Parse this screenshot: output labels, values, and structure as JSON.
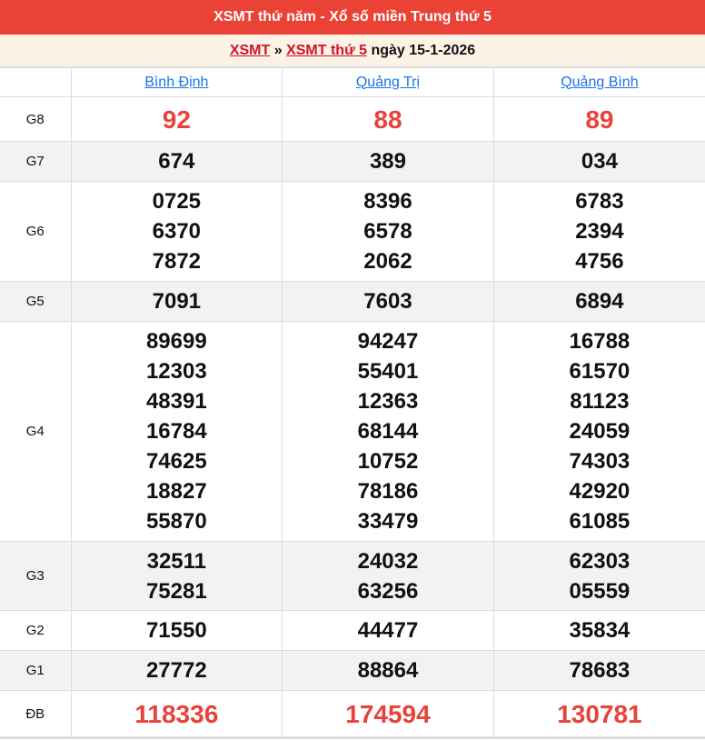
{
  "title": "XSMT thứ năm - Xổ số miền Trung thứ 5",
  "breadcrumb": {
    "link1": "XSMT",
    "sep": "»",
    "link2": "XSMT thứ 5",
    "date": "ngày 15-1-2026"
  },
  "provinces": [
    "Bình Định",
    "Quảng Trị",
    "Quảng Bình"
  ],
  "colors": {
    "header": "#ea4336",
    "special": "#e8423a",
    "link": "#1a73e8"
  },
  "prizes": [
    {
      "label": "G8",
      "values": [
        [
          "92"
        ],
        [
          "88"
        ],
        [
          "89"
        ]
      ]
    },
    {
      "label": "G7",
      "values": [
        [
          "674"
        ],
        [
          "389"
        ],
        [
          "034"
        ]
      ]
    },
    {
      "label": "G6",
      "values": [
        [
          "0725",
          "6370",
          "7872"
        ],
        [
          "8396",
          "6578",
          "2062"
        ],
        [
          "6783",
          "2394",
          "4756"
        ]
      ]
    },
    {
      "label": "G5",
      "values": [
        [
          "7091"
        ],
        [
          "7603"
        ],
        [
          "6894"
        ]
      ]
    },
    {
      "label": "G4",
      "values": [
        [
          "89699",
          "12303",
          "48391",
          "16784",
          "74625",
          "18827",
          "55870"
        ],
        [
          "94247",
          "55401",
          "12363",
          "68144",
          "10752",
          "78186",
          "33479"
        ],
        [
          "16788",
          "61570",
          "81123",
          "24059",
          "74303",
          "42920",
          "61085"
        ]
      ]
    },
    {
      "label": "G3",
      "values": [
        [
          "32511",
          "75281"
        ],
        [
          "24032",
          "63256"
        ],
        [
          "62303",
          "05559"
        ]
      ]
    },
    {
      "label": "G2",
      "values": [
        [
          "71550"
        ],
        [
          "44477"
        ],
        [
          "35834"
        ]
      ]
    },
    {
      "label": "G1",
      "values": [
        [
          "27772"
        ],
        [
          "88864"
        ],
        [
          "78683"
        ]
      ]
    },
    {
      "label": "ĐB",
      "values": [
        [
          "118336"
        ],
        [
          "174594"
        ],
        [
          "130781"
        ]
      ]
    }
  ]
}
